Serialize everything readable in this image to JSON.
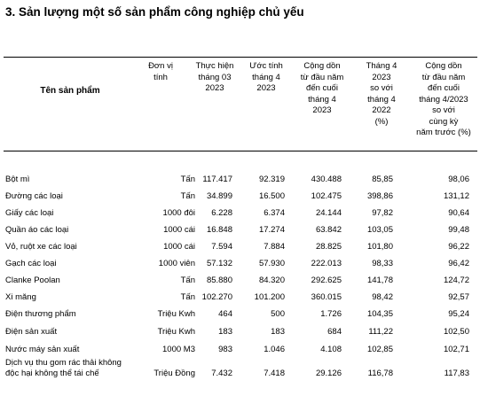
{
  "section": {
    "title": "3. Sản lượng một số sản phẩm công nghiệp chủ yếu"
  },
  "table": {
    "headers": {
      "name": "Tên sản phẩm",
      "unit": "Đơn vị\ntính",
      "col1": "Thực hiện\ntháng 03\n2023",
      "col2": "Ước tính\ntháng 4\n2023",
      "col3": "Cộng dồn\ntừ đầu năm\nđến cuối\ntháng 4\n2023",
      "col4": "Tháng 4\n2023\nso với\ntháng 4\n2022\n(%)",
      "col5": "Cộng dồn\ntừ đầu năm\nđến cuối\ntháng 4/2023\nso với\ncùng kỳ\nnăm trước (%)"
    },
    "rows": [
      {
        "name": "Bột mì",
        "unit": "Tấn",
        "v1": "117.417",
        "v2": "92.319",
        "v3": "430.488",
        "v4": "85,85",
        "v5": "98,06"
      },
      {
        "name": "Đường các loại",
        "unit": "Tấn",
        "v1": "34.899",
        "v2": "16.500",
        "v3": "102.475",
        "v4": "398,86",
        "v5": "131,12"
      },
      {
        "name": "Giấy các loại",
        "unit": "1000 đôi",
        "v1": "6.228",
        "v2": "6.374",
        "v3": "24.144",
        "v4": "97,82",
        "v5": "90,64"
      },
      {
        "name": "Quần áo các loại",
        "unit": "1000 cái",
        "v1": "16.848",
        "v2": "17.274",
        "v3": "63.842",
        "v4": "103,05",
        "v5": "99,48"
      },
      {
        "name": "Vỏ, ruột xe các loại",
        "unit": "1000 cái",
        "v1": "7.594",
        "v2": "7.884",
        "v3": "28.825",
        "v4": "101,80",
        "v5": "96,22"
      },
      {
        "name": "Gạch các loại",
        "unit": "1000 viên",
        "v1": "57.132",
        "v2": "57.930",
        "v3": "222.013",
        "v4": "98,33",
        "v5": "96,42"
      },
      {
        "name": "Clanke Poolan",
        "unit": "Tấn",
        "v1": "85.880",
        "v2": "84.320",
        "v3": "292.625",
        "v4": "141,78",
        "v5": "124,72"
      },
      {
        "name": "Xi măng",
        "unit": "Tấn",
        "v1": "102.270",
        "v2": "101.200",
        "v3": "360.015",
        "v4": "98,42",
        "v5": "92,57"
      },
      {
        "name": "Điện thương phẩm",
        "unit": "Triệu Kwh",
        "v1": "464",
        "v2": "500",
        "v3": "1.726",
        "v4": "104,35",
        "v5": "95,24"
      },
      {
        "name": "Điện sản xuất",
        "unit": "Triệu Kwh",
        "v1": "183",
        "v2": "183",
        "v3": "684",
        "v4": "111,22",
        "v5": "102,50"
      },
      {
        "name": "Nước máy sản xuất",
        "unit": "1000 M3",
        "v1": "983",
        "v2": "1.046",
        "v3": "4.108",
        "v4": "102,85",
        "v5": "102,71"
      },
      {
        "name": "Dịch vụ thu gom rác thải không\nđộc hại không thể tái chế",
        "unit": "Triệu Đồng",
        "v1": "7.432",
        "v2": "7.418",
        "v3": "29.126",
        "v4": "116,78",
        "v5": "117,83"
      }
    ]
  }
}
